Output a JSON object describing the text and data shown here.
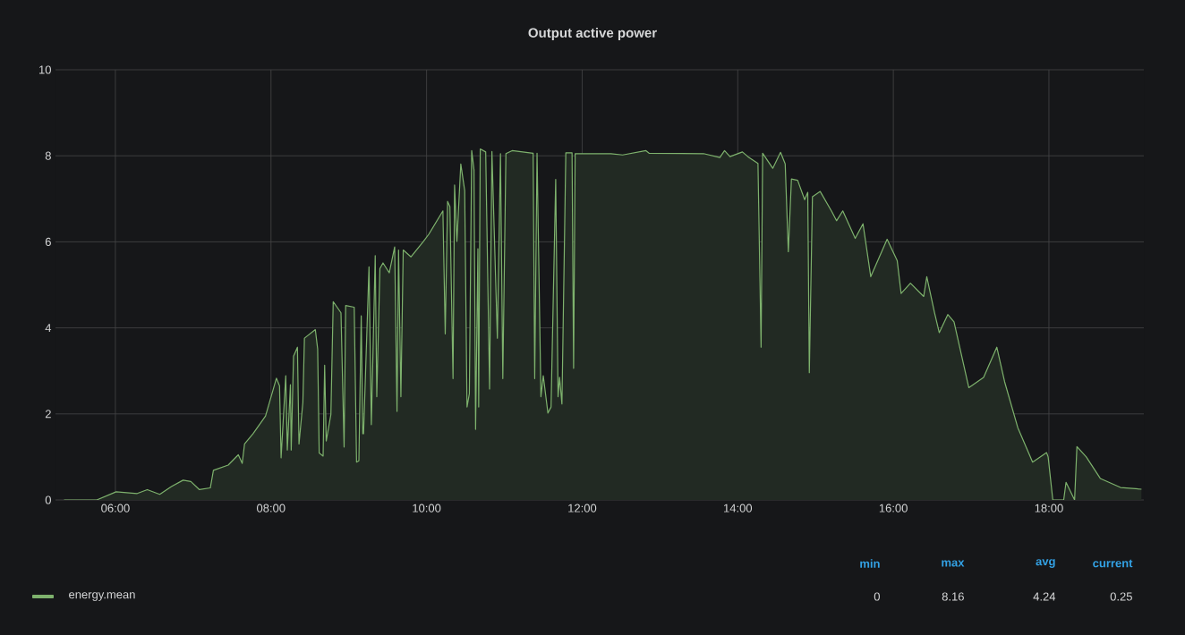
{
  "chart_data": {
    "type": "area",
    "title": "Output active power",
    "x": [
      5.34,
      5.76,
      6.01,
      6.28,
      6.41,
      6.57,
      6.72,
      6.87,
      6.97,
      7.08,
      7.22,
      7.26,
      7.45,
      7.58,
      7.63,
      7.66,
      7.77,
      7.93,
      8.07,
      8.11,
      8.13,
      8.19,
      8.21,
      8.25,
      8.26,
      8.29,
      8.34,
      8.36,
      8.41,
      8.43,
      8.57,
      8.6,
      8.62,
      8.67,
      8.69,
      8.71,
      8.77,
      8.8,
      8.9,
      8.94,
      8.96,
      9.07,
      9.1,
      9.13,
      9.16,
      9.18,
      9.19,
      9.26,
      9.29,
      9.34,
      9.36,
      9.4,
      9.44,
      9.52,
      9.59,
      9.62,
      9.64,
      9.67,
      9.7,
      9.8,
      9.96,
      10.03,
      10.21,
      10.24,
      10.27,
      10.3,
      10.34,
      10.36,
      10.39,
      10.44,
      10.49,
      10.52,
      10.55,
      10.58,
      10.61,
      10.63,
      10.66,
      10.67,
      10.69,
      10.76,
      10.81,
      10.84,
      10.91,
      10.95,
      10.98,
      11.02,
      11.1,
      11.37,
      11.39,
      11.42,
      11.47,
      11.5,
      11.56,
      11.6,
      11.66,
      11.69,
      11.71,
      11.74,
      11.79,
      11.87,
      11.89,
      11.91,
      12.37,
      12.52,
      12.82,
      12.86,
      13.56,
      13.77,
      13.83,
      13.9,
      14.06,
      14.13,
      14.26,
      14.3,
      14.32,
      14.45,
      14.55,
      14.61,
      14.65,
      14.69,
      14.77,
      14.86,
      14.9,
      14.92,
      14.96,
      15.06,
      15.21,
      15.27,
      15.35,
      15.51,
      15.61,
      15.71,
      15.92,
      16.05,
      16.1,
      16.22,
      16.39,
      16.43,
      16.53,
      16.59,
      16.7,
      16.78,
      16.97,
      17.16,
      17.33,
      17.43,
      17.6,
      17.79,
      17.97,
      17.99,
      18.05,
      18.19,
      18.22,
      18.33,
      18.36,
      18.48,
      18.66,
      18.92,
      19.19
    ],
    "series": [
      {
        "name": "energy.mean",
        "color": "#7eb26d",
        "values": [
          0,
          0,
          0.19,
          0.15,
          0.24,
          0.13,
          0.31,
          0.46,
          0.43,
          0.24,
          0.28,
          0.69,
          0.81,
          1.05,
          0.85,
          1.3,
          1.54,
          1.95,
          2.83,
          2.65,
          0.98,
          2.89,
          1.16,
          2.68,
          1.16,
          3.34,
          3.55,
          1.3,
          2.27,
          3.76,
          3.96,
          3.51,
          1.09,
          1.02,
          3.13,
          1.37,
          1.99,
          4.61,
          4.35,
          1.23,
          4.52,
          4.48,
          0.88,
          0.91,
          4.28,
          1.54,
          1.54,
          5.42,
          1.75,
          5.68,
          2.4,
          5.38,
          5.51,
          5.28,
          5.88,
          2.06,
          5.81,
          2.4,
          5.81,
          5.65,
          6.01,
          6.18,
          6.72,
          3.86,
          6.94,
          6.82,
          2.82,
          7.32,
          6.01,
          7.81,
          7.19,
          2.16,
          2.47,
          8.12,
          7.67,
          1.64,
          5.84,
          2.16,
          8.16,
          8.09,
          2.58,
          8.1,
          3.76,
          8.05,
          2.82,
          8.05,
          8.12,
          8.06,
          2.82,
          8.06,
          2.4,
          2.89,
          2.02,
          2.16,
          7.45,
          2.4,
          2.85,
          2.23,
          8.07,
          8.07,
          3.06,
          8.05,
          8.05,
          8.02,
          8.12,
          8.06,
          8.05,
          7.96,
          8.12,
          7.98,
          8.09,
          7.98,
          7.82,
          3.55,
          8.06,
          7.71,
          8.08,
          7.81,
          5.77,
          7.46,
          7.43,
          6.98,
          7.15,
          2.96,
          7.05,
          7.17,
          6.7,
          6.49,
          6.72,
          6.08,
          6.42,
          5.19,
          6.06,
          5.56,
          4.8,
          5.04,
          4.73,
          5.19,
          4.35,
          3.89,
          4.31,
          4.14,
          2.61,
          2.85,
          3.55,
          2.75,
          1.68,
          0.88,
          1.1,
          1.0,
          0,
          0,
          0.41,
          0,
          1.24,
          1.0,
          0.5,
          0.29,
          0.25
        ]
      }
    ],
    "xlim": [
      5.23,
      19.22
    ],
    "ylim": [
      0,
      10
    ],
    "xticks": [
      {
        "value": 6,
        "label": "06:00"
      },
      {
        "value": 8,
        "label": "08:00"
      },
      {
        "value": 10,
        "label": "10:00"
      },
      {
        "value": 12,
        "label": "12:00"
      },
      {
        "value": 14,
        "label": "14:00"
      },
      {
        "value": 16,
        "label": "16:00"
      },
      {
        "value": 18,
        "label": "18:00"
      }
    ],
    "yticks": [
      0,
      2,
      4,
      6,
      8,
      10
    ],
    "grid": true,
    "legend": "bottom",
    "annotations": [
      "min",
      "max",
      "avg",
      "current",
      "0",
      "8.16",
      "4.24",
      "0.25"
    ]
  }
}
